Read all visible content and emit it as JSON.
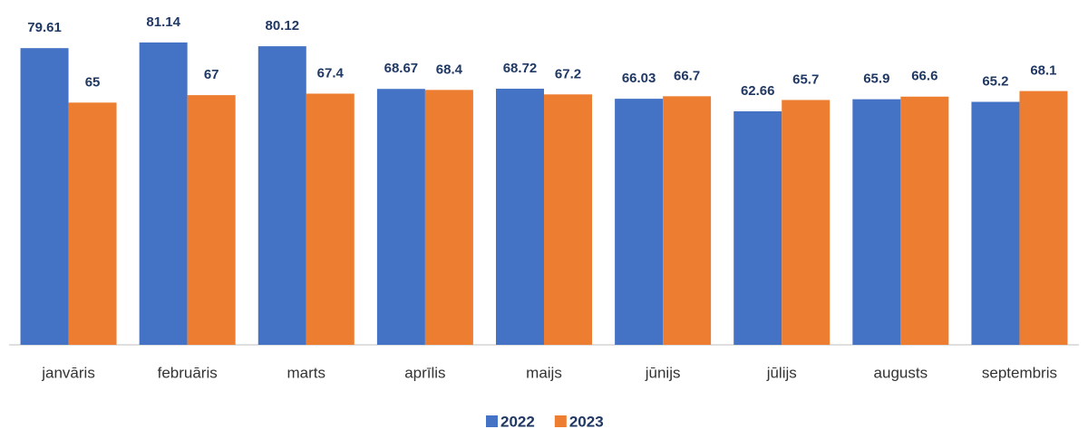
{
  "chart_data": {
    "type": "bar",
    "categories": [
      "janvāris",
      "februāris",
      "marts",
      "aprīlis",
      "maijs",
      "jūnijs",
      "jūlijs",
      "augusts",
      "septembris"
    ],
    "series": [
      {
        "name": "2022",
        "color": "#4472c4",
        "values": [
          79.61,
          81.14,
          80.12,
          68.67,
          68.72,
          66.03,
          62.66,
          65.9,
          65.2
        ]
      },
      {
        "name": "2023",
        "color": "#ed7d31",
        "values": [
          65,
          67,
          67.4,
          68.4,
          67.2,
          66.7,
          65.7,
          66.6,
          68.1
        ]
      }
    ],
    "ylim": [
      0,
      85
    ],
    "legend": "bottom"
  }
}
